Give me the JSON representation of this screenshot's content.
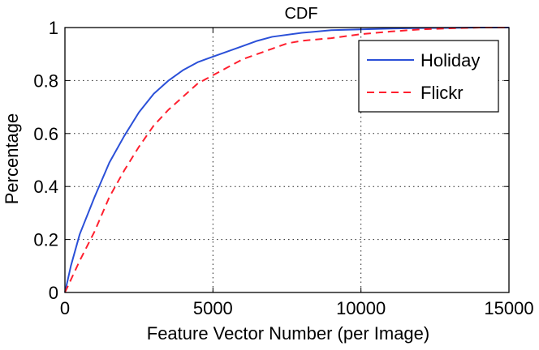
{
  "chart_data": {
    "type": "line",
    "title": "CDF",
    "xlabel": "Feature Vector Number (per Image)",
    "ylabel": "Percentage",
    "xlim": [
      0,
      15000
    ],
    "ylim": [
      0,
      1
    ],
    "xticks": [
      0,
      5000,
      10000,
      15000
    ],
    "xtick_labels": [
      "0",
      "5000",
      "10000",
      "15000"
    ],
    "yticks": [
      0,
      0.2,
      0.4,
      0.6,
      0.8,
      1
    ],
    "ytick_labels": [
      "0",
      "0.2",
      "0.4",
      "0.6",
      "0.8",
      "1"
    ],
    "grid": true,
    "legend_position": "top-right",
    "series": [
      {
        "name": "Holiday",
        "color": "#2b50d8",
        "dash": "solid",
        "x": [
          0,
          200,
          500,
          1000,
          1500,
          2000,
          2500,
          3000,
          3500,
          4000,
          4500,
          5000,
          5500,
          6000,
          6500,
          7000,
          8000,
          9000,
          10000,
          11000,
          12000,
          13000,
          14000,
          15000
        ],
        "y": [
          0,
          0.1,
          0.22,
          0.36,
          0.49,
          0.59,
          0.68,
          0.75,
          0.8,
          0.84,
          0.87,
          0.89,
          0.91,
          0.93,
          0.95,
          0.965,
          0.98,
          0.99,
          0.993,
          0.996,
          0.998,
          0.999,
          1.0,
          1.0
        ]
      },
      {
        "name": "Flickr",
        "color": "#ff1f2e",
        "dash": "dashed",
        "x": [
          0,
          500,
          1000,
          1500,
          2000,
          2500,
          3000,
          3500,
          4000,
          4500,
          5000,
          5500,
          6000,
          6500,
          7000,
          7500,
          8000,
          9000,
          10000,
          11000,
          12000,
          13000,
          14000,
          15000
        ],
        "y": [
          0,
          0.12,
          0.23,
          0.36,
          0.46,
          0.55,
          0.63,
          0.69,
          0.74,
          0.79,
          0.82,
          0.85,
          0.88,
          0.9,
          0.92,
          0.94,
          0.95,
          0.96,
          0.975,
          0.985,
          0.993,
          0.997,
          1.0,
          1.0
        ]
      }
    ]
  }
}
